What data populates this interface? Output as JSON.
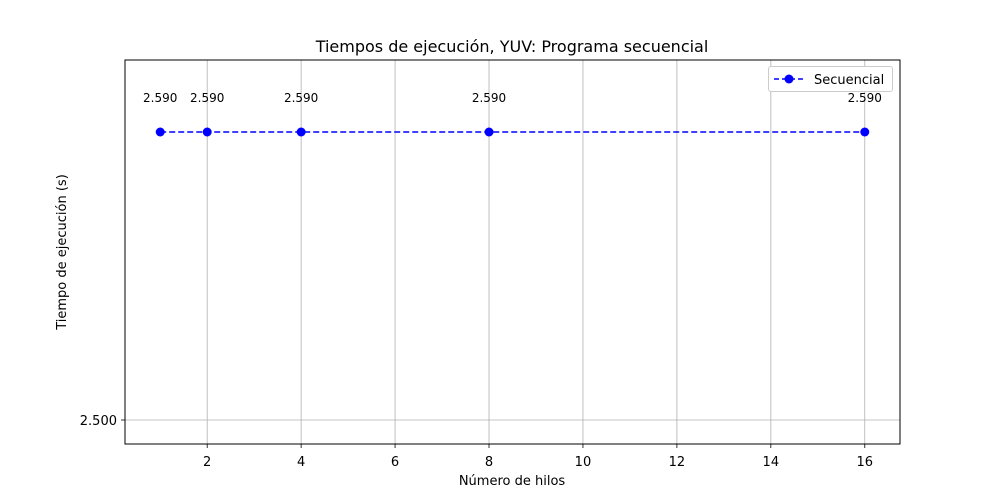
{
  "chart_data": {
    "type": "line",
    "title": "Tiempos de ejecución, YUV: Programa secuencial",
    "xlabel": "Número de hilos",
    "ylabel": "Tiempo de ejecución (s)",
    "x": [
      1,
      2,
      4,
      8,
      16
    ],
    "series": [
      {
        "name": "Secuencial",
        "values": [
          2.59,
          2.59,
          2.59,
          2.59,
          2.59
        ],
        "color": "#0000ff",
        "line_style": "dashed",
        "marker": "circle"
      }
    ],
    "data_labels": [
      "2.590",
      "2.590",
      "2.590",
      "2.590",
      "2.590"
    ],
    "xticks": [
      2,
      4,
      6,
      8,
      10,
      12,
      14,
      16
    ],
    "xtick_labels": [
      "2",
      "4",
      "6",
      "8",
      "10",
      "12",
      "14",
      "16"
    ],
    "yticks": [
      2.5
    ],
    "ytick_labels": [
      "2.500"
    ],
    "xlim": [
      0.25,
      16.75
    ],
    "ylim": [
      2.4925,
      2.6125
    ],
    "grid": true,
    "legend_position": "top-right"
  }
}
